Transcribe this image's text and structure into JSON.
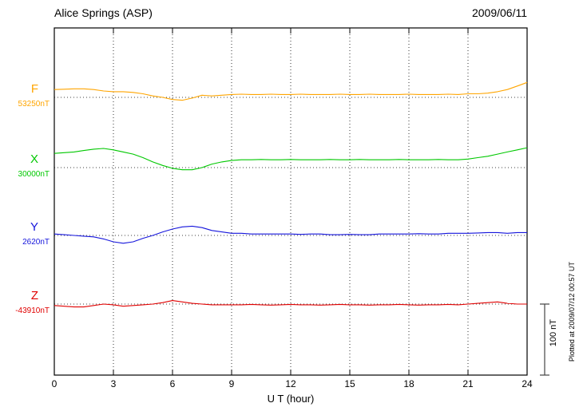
{
  "header": {
    "station": "Alice Springs (ASP)",
    "date": "2009/06/11"
  },
  "chart_data": {
    "type": "line",
    "title": "Alice Springs (ASP)",
    "date": "2009/06/11",
    "xlabel": "U T (hour)",
    "xlim": [
      0,
      24
    ],
    "x_ticks": [
      0,
      3,
      6,
      9,
      12,
      15,
      18,
      21,
      24
    ],
    "x_step_hours": 0.5,
    "grid": "dotted vertical lines every 3 hours; dotted horizontal baseline per trace",
    "scale_bar": {
      "label": "100 nT",
      "span_nT": 100
    },
    "plotted_at": "Plotted at 2009/07/12 00:57 UT",
    "series": [
      {
        "name": "F",
        "baseline_label": "53250nT",
        "baseline_nT": 53250,
        "color": "#FFA500",
        "offsets_nT": [
          11,
          11.5,
          12,
          12,
          11,
          9,
          8,
          8,
          7,
          5,
          2,
          0,
          -3,
          -4,
          -1,
          3,
          2,
          3,
          4,
          4.5,
          4,
          4,
          4.5,
          4,
          4,
          4.5,
          4,
          4,
          4,
          4.5,
          4,
          4,
          4.5,
          4,
          4,
          4,
          4.5,
          4,
          4,
          4,
          4.5,
          4,
          5,
          5,
          6,
          8,
          11,
          16,
          21
        ]
      },
      {
        "name": "X",
        "baseline_label": "30000nT",
        "baseline_nT": 30000,
        "color": "#00C800",
        "offsets_nT": [
          20,
          21,
          22,
          24,
          26,
          27,
          25,
          22,
          19,
          14,
          8,
          3,
          -1,
          -3,
          -3,
          0,
          5,
          8,
          10,
          11,
          11,
          11.5,
          11,
          11,
          11.5,
          11,
          11,
          11,
          11.5,
          11,
          11,
          11.5,
          11,
          11,
          11,
          11.5,
          11,
          11,
          11,
          11.5,
          11,
          11,
          12,
          14,
          16,
          19,
          22,
          25,
          28
        ]
      },
      {
        "name": "Y",
        "baseline_label": "2620nT",
        "baseline_nT": 2620,
        "color": "#1515DC",
        "offsets_nT": [
          2,
          1,
          0,
          -1,
          -2,
          -5,
          -9,
          -11,
          -9,
          -4,
          0,
          5,
          9,
          12,
          13,
          11,
          7,
          5,
          3,
          3,
          2,
          2,
          2,
          2,
          2,
          1.5,
          2,
          2,
          1,
          1,
          1.5,
          1,
          1,
          2,
          2,
          2,
          2,
          2.5,
          2,
          2,
          3,
          3,
          3,
          3.5,
          4,
          4,
          3,
          4,
          4
        ]
      },
      {
        "name": "Z",
        "baseline_label": "-43910nT",
        "baseline_nT": -43910,
        "color": "#E00000",
        "offsets_nT": [
          -2,
          -3,
          -4,
          -4,
          -2,
          0,
          -1,
          -3,
          -2,
          -1,
          0,
          2,
          5,
          3,
          1,
          0,
          -1,
          -1,
          -1,
          -1,
          -0.5,
          -1,
          -1.5,
          -1,
          -0.5,
          -1,
          -1,
          -1.5,
          -1,
          -0.5,
          -1,
          -1,
          -1.5,
          -1,
          -1,
          -0.5,
          -1,
          -1.5,
          -1,
          -1,
          -0.5,
          -1,
          0,
          1,
          2,
          3,
          1,
          0,
          0
        ]
      }
    ]
  }
}
